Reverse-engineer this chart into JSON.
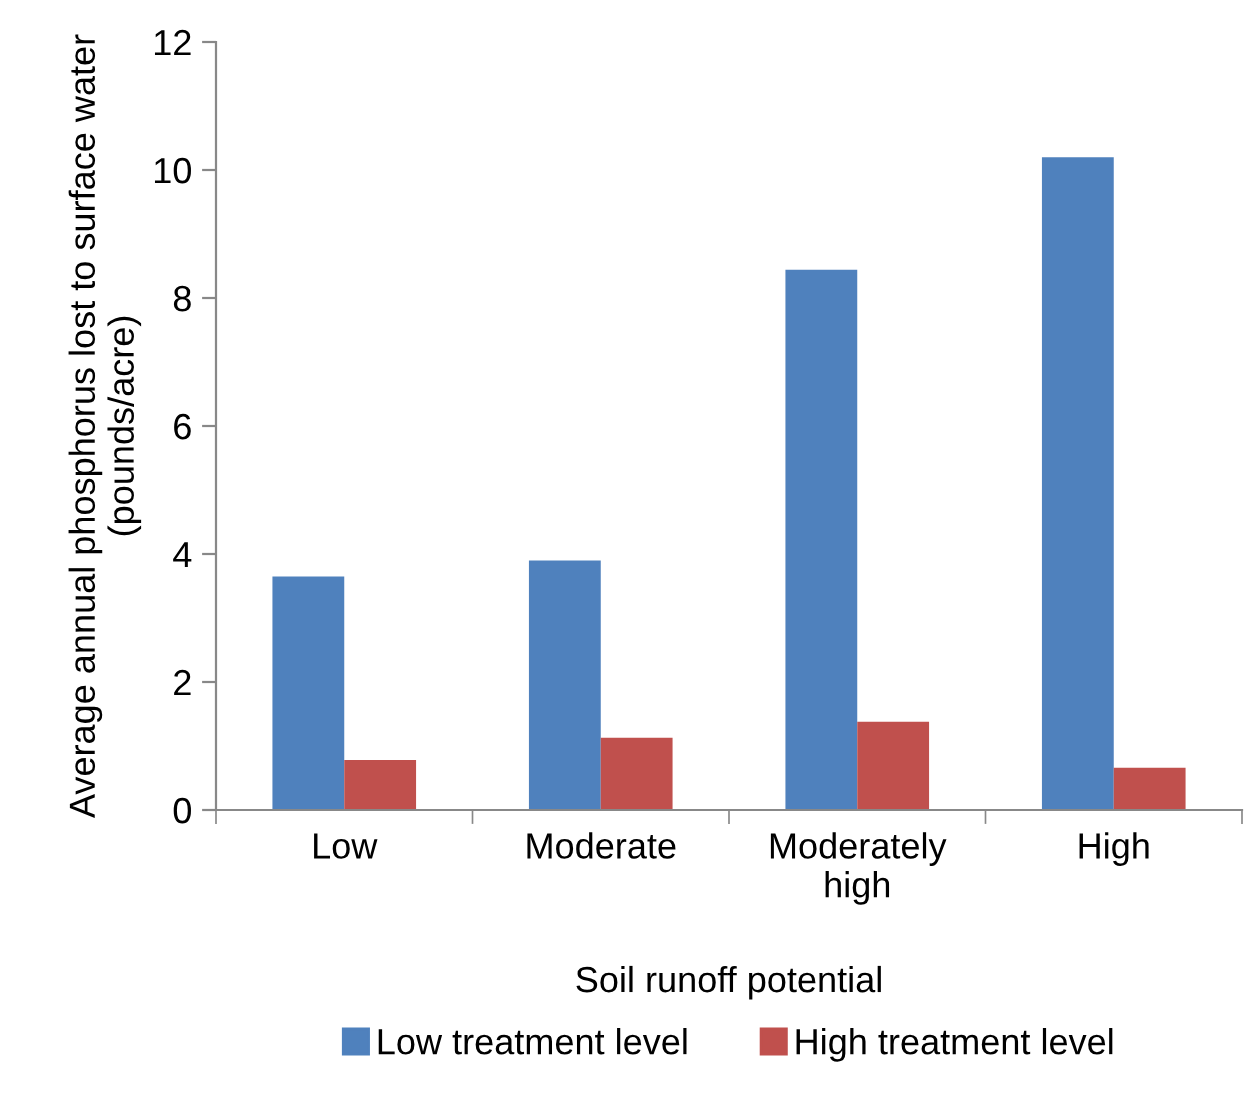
{
  "chart_data": {
    "type": "bar",
    "xlabel": "Soil runoff potential",
    "ylabel": "Average annual phosphorus lost to surface water (pounds/acre)",
    "categories": [
      "Low",
      "Moderate",
      "Moderately\nhigh",
      "High"
    ],
    "series": [
      {
        "name": "Low treatment level",
        "color": "#4f81bd",
        "values": [
          3.65,
          3.9,
          8.44,
          10.2
        ]
      },
      {
        "name": "High treatment level",
        "color": "#c0504d",
        "values": [
          0.78,
          1.13,
          1.38,
          0.66
        ]
      }
    ],
    "ylim": [
      0,
      12
    ],
    "yticks": [
      0,
      2,
      4,
      6,
      8,
      10,
      12
    ],
    "grid": false,
    "legend": "bottom"
  }
}
